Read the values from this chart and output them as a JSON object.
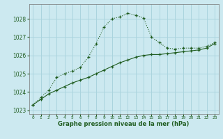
{
  "hours": [
    0,
    1,
    2,
    3,
    4,
    5,
    6,
    7,
    8,
    9,
    10,
    11,
    12,
    13,
    14,
    15,
    16,
    17,
    18,
    19,
    20,
    21,
    22,
    23
  ],
  "pressure_main": [
    1023.3,
    1023.7,
    1024.1,
    1024.8,
    1025.0,
    1025.15,
    1025.35,
    1025.9,
    1026.65,
    1027.55,
    1028.0,
    1028.1,
    1028.3,
    1028.2,
    1028.05,
    1027.0,
    1026.7,
    1026.4,
    1026.35,
    1026.4,
    1026.4,
    1026.4,
    1026.5,
    1026.7
  ],
  "pressure_linear": [
    1023.3,
    1023.6,
    1023.9,
    1024.1,
    1024.3,
    1024.5,
    1024.65,
    1024.8,
    1025.0,
    1025.2,
    1025.4,
    1025.6,
    1025.75,
    1025.9,
    1026.0,
    1026.05,
    1026.05,
    1026.1,
    1026.15,
    1026.2,
    1026.25,
    1026.3,
    1026.4,
    1026.65
  ],
  "bg_color": "#cce9f0",
  "grid_color": "#aad4de",
  "line_color": "#1f5c1f",
  "xlabel": "Graphe pression niveau de la mer (hPa)",
  "xlim": [
    -0.5,
    23.5
  ],
  "ylim": [
    1022.8,
    1028.8
  ],
  "yticks": [
    1023,
    1024,
    1025,
    1026,
    1027,
    1028
  ],
  "xticks": [
    0,
    1,
    2,
    3,
    4,
    5,
    6,
    7,
    8,
    9,
    10,
    11,
    12,
    13,
    14,
    15,
    16,
    17,
    18,
    19,
    20,
    21,
    22,
    23
  ]
}
